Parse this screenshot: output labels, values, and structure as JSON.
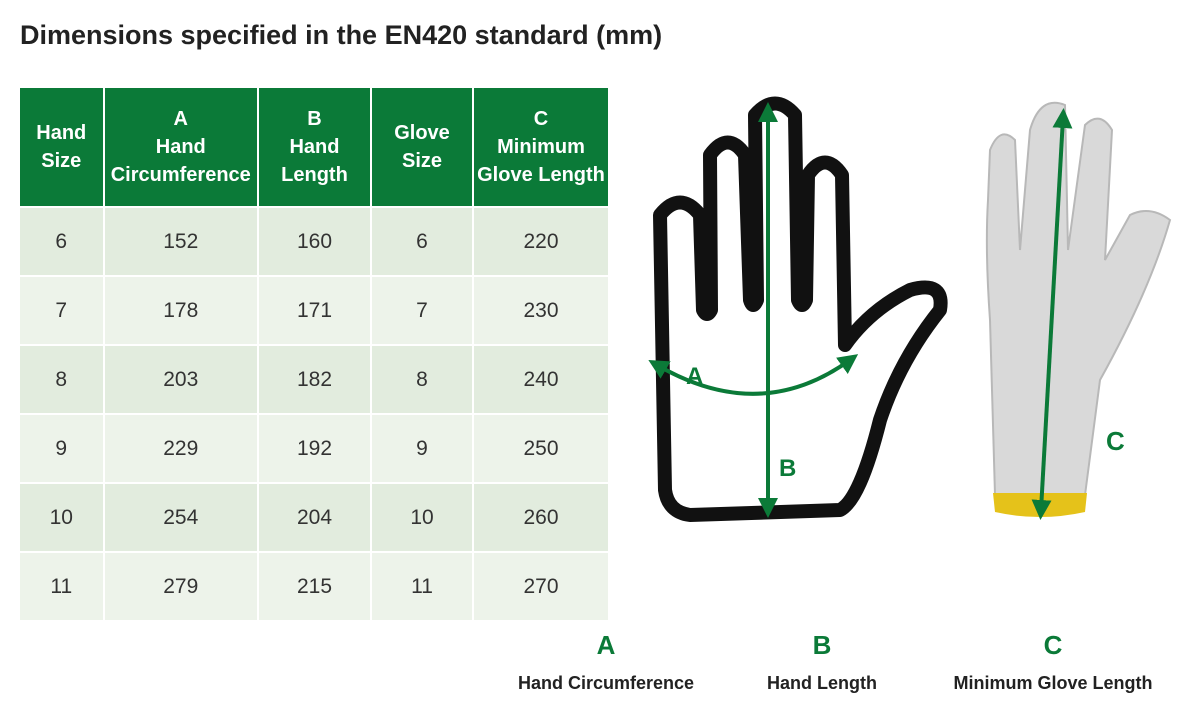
{
  "title": "Dimensions specified in the EN420 standard (mm)",
  "table": {
    "headers": [
      [
        "Hand",
        "Size"
      ],
      [
        "A",
        "Hand",
        "Circumference"
      ],
      [
        "B",
        "Hand",
        "Length"
      ],
      [
        "Glove",
        "Size"
      ],
      [
        "C",
        "Minimum",
        "Glove Length"
      ]
    ],
    "rows": [
      [
        6,
        152,
        160,
        6,
        220
      ],
      [
        7,
        178,
        171,
        7,
        230
      ],
      [
        8,
        203,
        182,
        8,
        240
      ],
      [
        9,
        229,
        192,
        9,
        250
      ],
      [
        10,
        254,
        204,
        10,
        260
      ],
      [
        11,
        279,
        215,
        11,
        270
      ]
    ]
  },
  "diagram": {
    "hand_labels": [
      "A",
      "B"
    ],
    "glove_label": "C"
  },
  "legend": [
    {
      "letter": "A",
      "name": "Hand Circumference"
    },
    {
      "letter": "B",
      "name": "Hand Length"
    },
    {
      "letter": "C",
      "name": "Minimum Glove Length"
    }
  ]
}
